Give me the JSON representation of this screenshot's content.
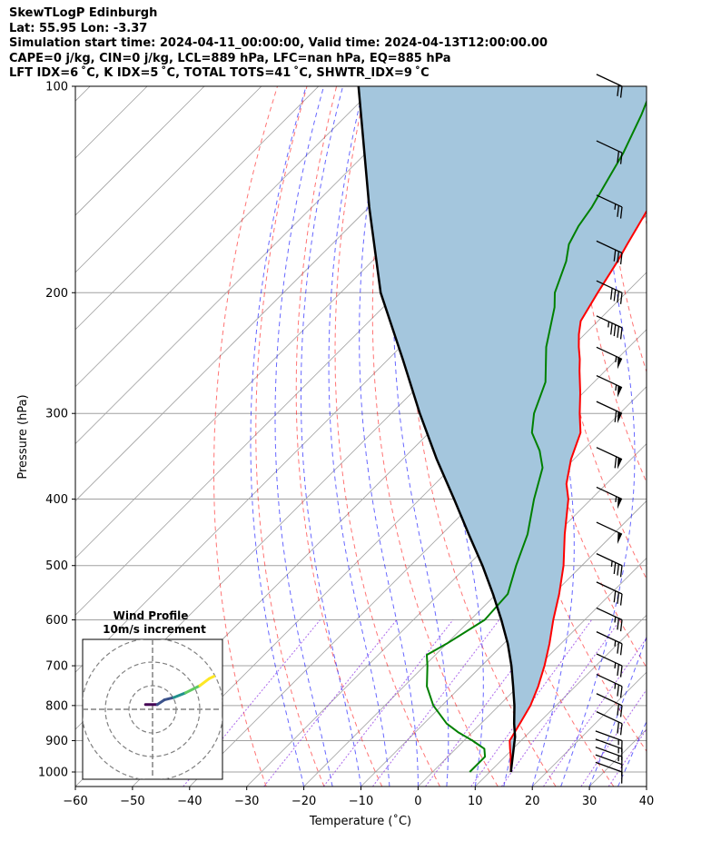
{
  "header": {
    "line1": "SkewTLogP Edinburgh",
    "line2": "Lat: 55.95   Lon: -3.37",
    "line3": "Simulation start time: 2024-04-11_00:00:00, Valid time: 2024-04-13T12:00:00.00",
    "line4": "CAPE=0 j/kg, CIN=0 j/kg, LCL=889 hPa, LFC=nan hPa, EQ=885 hPa",
    "line5": "LFT IDX=6 ˚C, K IDX=5 ˚C, TOTAL TOTS=41 ˚C, SHWTR_IDX=9 ˚C"
  },
  "chart_data": {
    "type": "skewt",
    "xlabel": "Temperature (˚C)",
    "ylabel": "Pressure (hPa)",
    "xlim": [
      -60,
      40
    ],
    "ylim": [
      1050,
      100
    ],
    "x_ticks": [
      -60,
      -50,
      -40,
      -30,
      -20,
      -10,
      0,
      10,
      20,
      30,
      40
    ],
    "p_ticks": [
      1000,
      900,
      800,
      700,
      600,
      500,
      400,
      300,
      200,
      100
    ],
    "series": [
      {
        "name": "Temperature",
        "color": "#ff0000",
        "points": [
          [
            1000,
            13.7
          ],
          [
            950,
            11.0
          ],
          [
            925,
            9.5
          ],
          [
            900,
            8.0
          ],
          [
            850,
            6.8
          ],
          [
            800,
            5.5
          ],
          [
            750,
            3.5
          ],
          [
            700,
            1.0
          ],
          [
            650,
            -2.0
          ],
          [
            600,
            -5.5
          ],
          [
            550,
            -9.0
          ],
          [
            500,
            -13.2
          ],
          [
            450,
            -18.5
          ],
          [
            400,
            -24.0
          ],
          [
            380,
            -27.0
          ],
          [
            350,
            -30.5
          ],
          [
            320,
            -33.5
          ],
          [
            300,
            -37.0
          ],
          [
            280,
            -40.5
          ],
          [
            260,
            -44.5
          ],
          [
            250,
            -46.5
          ],
          [
            240,
            -48.8
          ],
          [
            230,
            -51.0
          ],
          [
            220,
            -53.0
          ],
          [
            200,
            -55.0
          ],
          [
            180,
            -57.0
          ],
          [
            170,
            -58.3
          ],
          [
            160,
            -59.6
          ],
          [
            150,
            -61.0
          ],
          [
            140,
            -62.6
          ],
          [
            130,
            -64.4
          ],
          [
            120,
            -66.2
          ],
          [
            110,
            -68.2
          ],
          [
            100,
            -70.0
          ]
        ]
      },
      {
        "name": "Dewpoint",
        "color": "#008000",
        "points": [
          [
            1000,
            6.5
          ],
          [
            950,
            6.5
          ],
          [
            925,
            5.0
          ],
          [
            900,
            1.5
          ],
          [
            875,
            -2.5
          ],
          [
            850,
            -6.0
          ],
          [
            800,
            -11.5
          ],
          [
            750,
            -16.0
          ],
          [
            700,
            -19.5
          ],
          [
            675,
            -21.5
          ],
          [
            650,
            -20.0
          ],
          [
            600,
            -17.5
          ],
          [
            550,
            -18.0
          ],
          [
            500,
            -21.5
          ],
          [
            450,
            -25.0
          ],
          [
            400,
            -30.0
          ],
          [
            360,
            -34.0
          ],
          [
            340,
            -37.5
          ],
          [
            320,
            -42.0
          ],
          [
            300,
            -45.0
          ],
          [
            270,
            -48.5
          ],
          [
            240,
            -54.5
          ],
          [
            210,
            -60.0
          ],
          [
            200,
            -62.5
          ],
          [
            180,
            -66.0
          ],
          [
            170,
            -68.5
          ],
          [
            160,
            -70.0
          ],
          [
            150,
            -71.0
          ],
          [
            140,
            -72.5
          ],
          [
            125,
            -75.0
          ],
          [
            110,
            -78.5
          ],
          [
            100,
            -81.5
          ]
        ]
      },
      {
        "name": "Parcel",
        "color": "#000000",
        "points": [
          [
            1000,
            13.7
          ],
          [
            889,
            8.3
          ],
          [
            850,
            5.8
          ],
          [
            800,
            2.7
          ],
          [
            750,
            -0.9
          ],
          [
            700,
            -4.8
          ],
          [
            650,
            -9.3
          ],
          [
            600,
            -14.6
          ],
          [
            550,
            -20.6
          ],
          [
            500,
            -27.4
          ],
          [
            450,
            -35.3
          ],
          [
            400,
            -44.0
          ],
          [
            350,
            -54.0
          ],
          [
            300,
            -65.0
          ],
          [
            250,
            -77.5
          ],
          [
            200,
            -93.0
          ],
          [
            150,
            -110.0
          ],
          [
            100,
            -133.0
          ]
        ]
      }
    ],
    "shaded_area": {
      "between": [
        "Parcel",
        "Temperature"
      ],
      "color": "#a4c6dd"
    },
    "wind_barbs": {
      "pressures": [
        1000,
        975,
        950,
        925,
        900,
        850,
        800,
        750,
        700,
        650,
        600,
        550,
        500,
        450,
        400,
        350,
        300,
        275,
        250,
        225,
        200,
        175,
        150,
        125,
        100
      ],
      "speeds_kt": [
        8,
        10,
        13,
        15,
        17,
        20,
        22,
        24,
        25,
        26,
        27,
        30,
        35,
        50,
        55,
        60,
        60,
        55,
        55,
        45,
        40,
        30,
        25,
        20,
        20
      ],
      "direction_deg": [
        250,
        250,
        250,
        250,
        250,
        245,
        245,
        245,
        245,
        245,
        245,
        245,
        245,
        245,
        245,
        245,
        245,
        245,
        245,
        245,
        245,
        245,
        245,
        245,
        245
      ]
    },
    "wind_profile_inset": {
      "title_line1": "Wind Profile",
      "title_line2": "10m/s increment",
      "rings_ms": [
        10,
        20,
        30
      ],
      "hodograph": {
        "points": [
          [
            -3,
            2
          ],
          [
            2,
            2
          ],
          [
            5,
            4
          ],
          [
            9,
            5
          ],
          [
            14,
            7
          ],
          [
            20,
            10
          ],
          [
            24,
            13
          ],
          [
            26,
            14
          ]
        ],
        "colors": [
          "#440154",
          "#3b528b",
          "#3b528b",
          "#21918c",
          "#5ec962",
          "#fde725"
        ]
      }
    },
    "colors": {
      "dry_adiabats": "#ff0000",
      "moist_adiabats": "#0000ff",
      "mixing_ratio": "#8a2be2",
      "isotherms": "#a0a0a0",
      "isobars": "#a0a0a0",
      "shading": "#a4c6dd"
    }
  }
}
